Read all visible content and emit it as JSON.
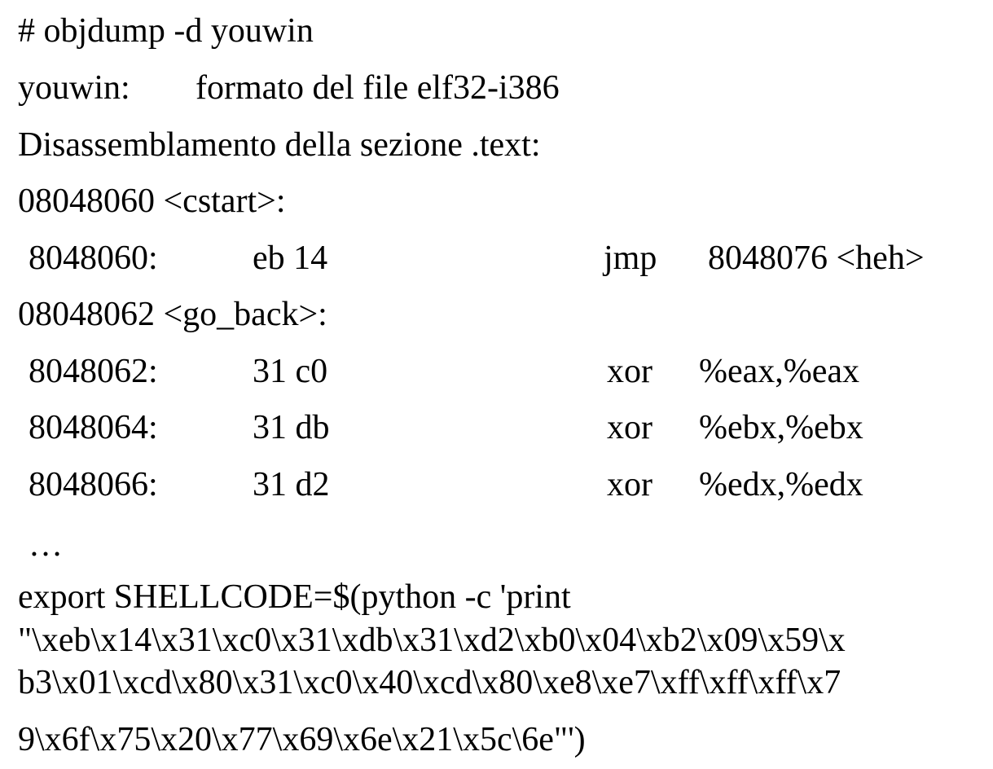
{
  "command": "# objdump -d youwin",
  "file_label": "youwin:",
  "file_format": "formato del file elf32-i386",
  "section_heading": "Disassemblamento della sezione .text:",
  "symbols": {
    "cstart": "08048060 <cstart>:",
    "go_back": "08048062 <go_back>:"
  },
  "instructions": [
    {
      "address": "8048060:",
      "bytes": "eb 14",
      "mnemonic": "jmp",
      "operands": "8048076 <heh>"
    },
    {
      "address": "8048062:",
      "bytes": "31 c0",
      "mnemonic": "xor",
      "operands": "%eax,%eax"
    },
    {
      "address": "8048064:",
      "bytes": "31 db",
      "mnemonic": "xor",
      "operands": "%ebx,%ebx"
    },
    {
      "address": "8048066:",
      "bytes": "31 d2",
      "mnemonic": "xor",
      "operands": "%edx,%edx"
    }
  ],
  "ellipsis": "…",
  "shellcode_lines": [
    "export SHELLCODE=$(python -c 'print",
    "\"\\xeb\\x14\\x31\\xc0\\x31\\xdb\\x31\\xd2\\xb0\\x04\\xb2\\x09\\x59\\x",
    "b3\\x01\\xcd\\x80\\x31\\xc0\\x40\\xcd\\x80\\xe8\\xe7\\xff\\xff\\xff\\x7",
    "9\\x6f\\x75\\x20\\x77\\x69\\x6e\\x21\\x5c\\6e\"')"
  ]
}
